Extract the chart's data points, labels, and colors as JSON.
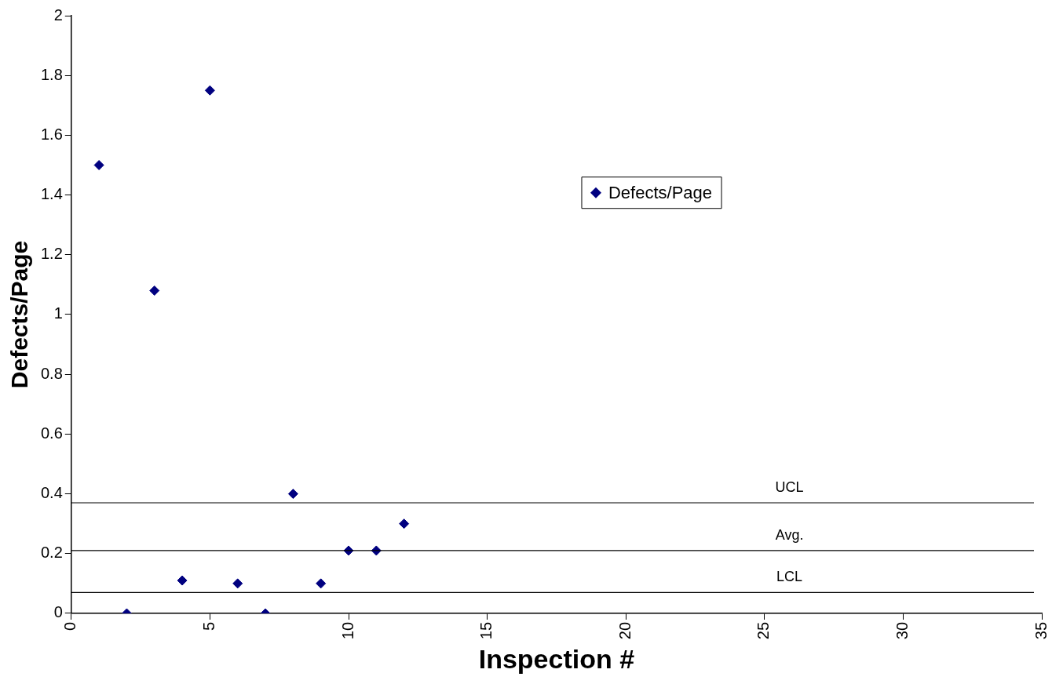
{
  "chart_data": {
    "type": "scatter",
    "xlabel": "Inspection #",
    "ylabel": "Defects/Page",
    "x": [
      1,
      2,
      3,
      4,
      5,
      6,
      7,
      8,
      9,
      10,
      11,
      12
    ],
    "series": [
      {
        "name": "Defects/Page",
        "color": "#000080",
        "values": [
          1.5,
          0,
          1.08,
          0.11,
          1.75,
          0.1,
          0,
          0.4,
          0.1,
          0.21,
          0.21,
          0.3
        ]
      }
    ],
    "xlim": [
      0,
      35
    ],
    "xticks": [
      0,
      5,
      10,
      15,
      20,
      25,
      30,
      35
    ],
    "ylim": [
      0,
      2
    ],
    "yticks": [
      0,
      0.2,
      0.4,
      0.6,
      0.8,
      1,
      1.2,
      1.4,
      1.6,
      1.8,
      2
    ],
    "ref_lines": [
      {
        "axis": "y",
        "value": 0.37,
        "label": "UCL",
        "color": "#000000"
      },
      {
        "axis": "y",
        "value": 0.21,
        "label": "Avg.",
        "color": "#000000"
      },
      {
        "axis": "y",
        "value": 0.07,
        "label": "LCL",
        "color": "#000000"
      }
    ],
    "grid": false,
    "legend": "top right",
    "marker": "diamond"
  }
}
